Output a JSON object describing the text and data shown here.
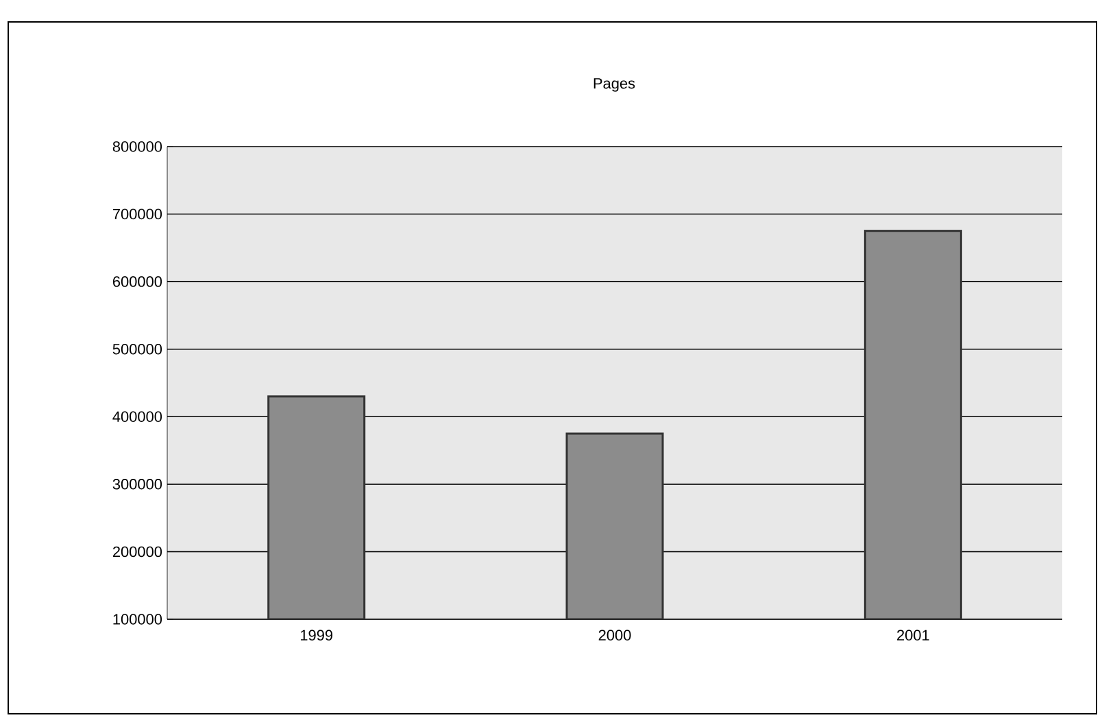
{
  "chart_data": {
    "type": "bar",
    "title": "Pages",
    "categories": [
      "1999",
      "2000",
      "2001"
    ],
    "values": [
      430000,
      375000,
      675000
    ],
    "color": "#8c8c8c",
    "ylim": [
      100000,
      800000
    ],
    "yticks": [
      100000,
      200000,
      300000,
      400000,
      500000,
      600000,
      700000,
      800000
    ],
    "grid": "y"
  }
}
